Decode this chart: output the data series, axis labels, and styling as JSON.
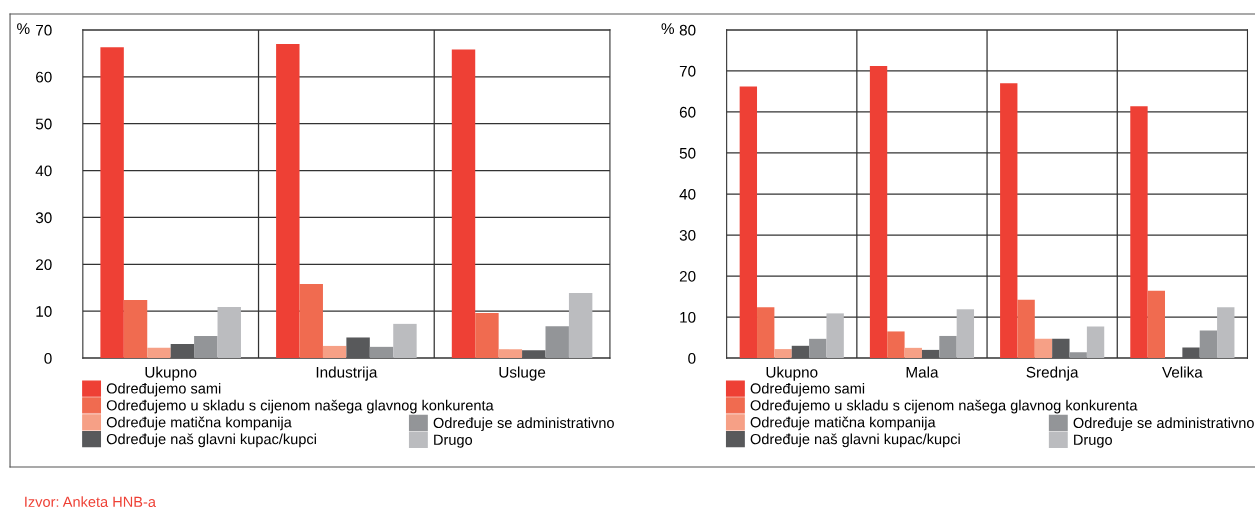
{
  "chart_data": [
    {
      "type": "bar",
      "ylabel": "%",
      "categories": [
        "Ukupno",
        "Industrija",
        "Usluge"
      ],
      "ylim": [
        0,
        70
      ],
      "yticks": [
        0,
        10,
        20,
        30,
        40,
        50,
        60,
        70
      ],
      "grid": true,
      "legend": "bottom",
      "series": [
        {
          "name": "Određujemo sami",
          "color": "#ee4035",
          "values": [
            66.3,
            67.0,
            65.8
          ]
        },
        {
          "name": "Određujemo u skladu s cijenom našega glavnog konkurenta",
          "color": "#f06b50",
          "values": [
            12.4,
            15.8,
            9.6
          ]
        },
        {
          "name": "Određuje matična kompanija",
          "color": "#f6a086",
          "values": [
            2.2,
            2.6,
            1.9
          ]
        },
        {
          "name": "Određuje naš glavni kupac/kupci",
          "color": "#58595b",
          "values": [
            3.0,
            4.4,
            1.7
          ]
        },
        {
          "name": "Određuje se administrativno",
          "color": "#939598",
          "values": [
            4.7,
            2.4,
            6.8
          ]
        },
        {
          "name": "Drugo",
          "color": "#bbbcbf",
          "values": [
            10.9,
            7.3,
            13.9
          ]
        }
      ],
      "annotations": [
        "Izvor: Anketa HNB-a"
      ]
    },
    {
      "type": "bar",
      "ylabel": "%",
      "categories": [
        "Ukupno",
        "Mala",
        "Srednja",
        "Velika"
      ],
      "ylim": [
        0,
        80
      ],
      "yticks": [
        0,
        10,
        20,
        30,
        40,
        50,
        60,
        70,
        80
      ],
      "grid": true,
      "legend": "bottom",
      "series": [
        {
          "name": "Određujemo sami",
          "color": "#ee4035",
          "values": [
            66.2,
            71.2,
            67.0,
            61.4
          ]
        },
        {
          "name": "Određujemo u skladu s cijenom našega glavnog konkurenta",
          "color": "#f06b50",
          "values": [
            12.4,
            6.5,
            14.2,
            16.4
          ]
        },
        {
          "name": "Određuje matična kompanija",
          "color": "#f6a086",
          "values": [
            2.2,
            2.5,
            4.7,
            null
          ]
        },
        {
          "name": "Određuje naš glavni kupac/kupci",
          "color": "#58595b",
          "values": [
            3.0,
            2.0,
            4.7,
            2.6
          ]
        },
        {
          "name": "Određuje se administrativno",
          "color": "#939598",
          "values": [
            4.7,
            5.4,
            1.4,
            6.7
          ]
        },
        {
          "name": "Drugo",
          "color": "#bbbcbf",
          "values": [
            10.9,
            11.9,
            7.7,
            12.4
          ]
        }
      ]
    }
  ]
}
